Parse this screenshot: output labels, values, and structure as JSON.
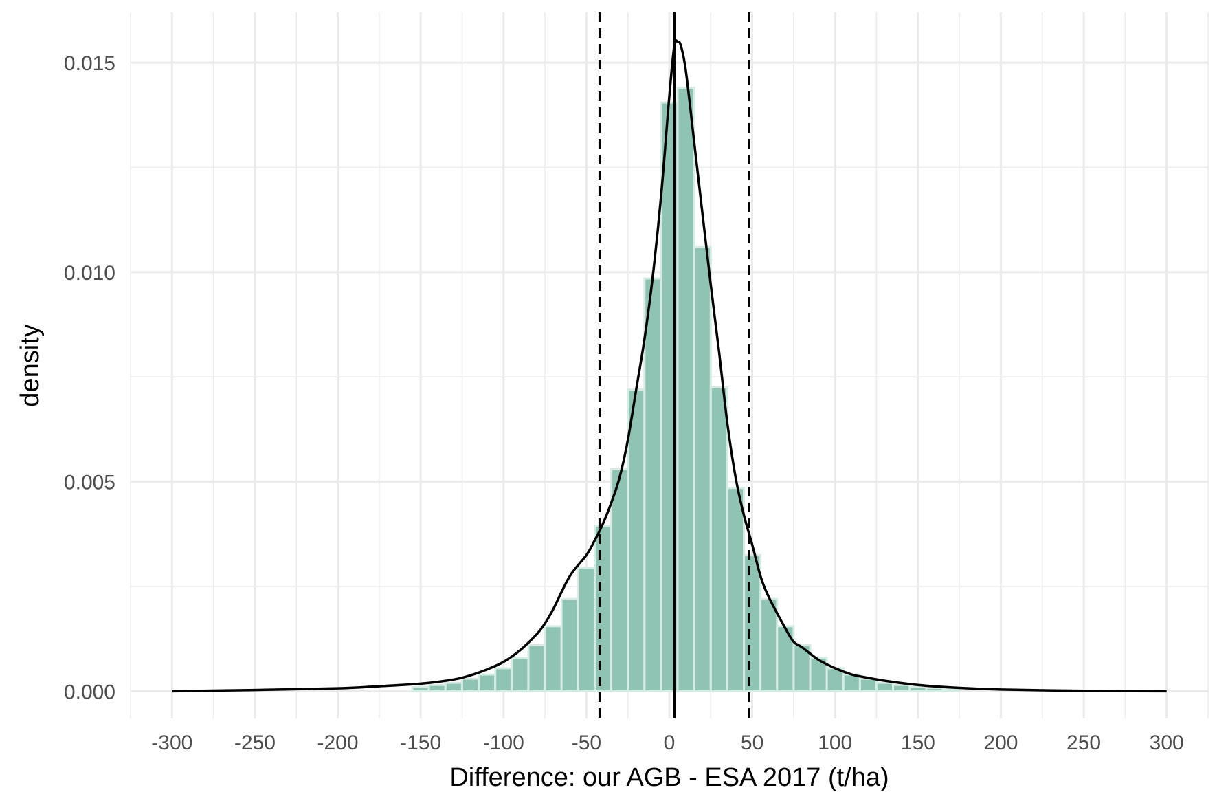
{
  "chart_data": {
    "type": "bar",
    "title": "",
    "xlabel": "Difference: our AGB - ESA 2017 (t/ha)",
    "ylabel": "density",
    "xlim": [
      -325,
      325
    ],
    "ylim": [
      -0.00065,
      0.0162
    ],
    "x_ticks": [
      -300,
      -250,
      -200,
      -150,
      -100,
      -50,
      0,
      50,
      100,
      150,
      200,
      250,
      300
    ],
    "x_tick_labels": [
      "-300",
      "-250",
      "-200",
      "-150",
      "-100",
      "-50",
      "0",
      "50",
      "100",
      "150",
      "200",
      "250",
      "300"
    ],
    "y_ticks": [
      0,
      0.005,
      0.01,
      0.015
    ],
    "y_tick_labels": [
      "0.000",
      "0.005",
      "0.010",
      "0.015"
    ],
    "grid": true,
    "histogram": {
      "bin_width": 10,
      "bin_centers": [
        -150,
        -140,
        -130,
        -120,
        -110,
        -100,
        -90,
        -80,
        -70,
        -60,
        -50,
        -40,
        -30,
        -20,
        -10,
        0,
        10,
        20,
        30,
        40,
        50,
        60,
        70,
        80,
        90,
        100,
        110,
        120,
        130,
        140,
        150,
        160,
        170
      ],
      "values": [
        0.0001,
        0.00015,
        0.0002,
        0.0003,
        0.0004,
        0.00055,
        0.0008,
        0.0011,
        0.00155,
        0.0022,
        0.00295,
        0.00395,
        0.0053,
        0.0072,
        0.00985,
        0.01405,
        0.0144,
        0.0106,
        0.00725,
        0.00485,
        0.00325,
        0.0022,
        0.00155,
        0.0011,
        0.0008,
        0.00055,
        0.0004,
        0.0003,
        0.0002,
        0.00015,
        0.0001,
        8e-05,
        5e-05
      ],
      "fill_color": "#8fc4b4",
      "edge_color": "#d7ebe5"
    },
    "density_curve": {
      "x": [
        -300,
        -250,
        -200,
        -175,
        -150,
        -130,
        -120,
        -110,
        -100,
        -90,
        -80,
        -75,
        -70,
        -60,
        -50,
        -45,
        -40,
        -35,
        -30,
        -25,
        -20,
        -15,
        -10,
        -5,
        0,
        3,
        5,
        7,
        10,
        15,
        20,
        25,
        30,
        35,
        40,
        45,
        50,
        55,
        60,
        70,
        75,
        80,
        90,
        100,
        110,
        120,
        130,
        150,
        175,
        200,
        250,
        300
      ],
      "y": [
        0,
        3e-05,
        7e-05,
        0.00012,
        0.00018,
        0.00028,
        0.00038,
        0.00052,
        0.0007,
        0.00098,
        0.00136,
        0.00162,
        0.00196,
        0.00275,
        0.00325,
        0.0036,
        0.004,
        0.0045,
        0.0051,
        0.006,
        0.0072,
        0.0084,
        0.0099,
        0.0118,
        0.0142,
        0.0154,
        0.0155,
        0.0154,
        0.0148,
        0.0131,
        0.0114,
        0.0097,
        0.0081,
        0.0064,
        0.0051,
        0.0042,
        0.0035,
        0.00275,
        0.00225,
        0.0015,
        0.00118,
        0.00105,
        0.00075,
        0.00055,
        0.0004,
        0.00032,
        0.00025,
        0.00015,
        8e-05,
        4e-05,
        1e-05,
        0
      ],
      "color": "#000000"
    },
    "reference_lines": [
      {
        "x": 3,
        "style": "solid",
        "color": "#000000"
      },
      {
        "x": -42,
        "style": "dashed",
        "color": "#000000"
      },
      {
        "x": 48,
        "style": "dashed",
        "color": "#000000"
      }
    ],
    "grid_color": "#ebebeb"
  }
}
